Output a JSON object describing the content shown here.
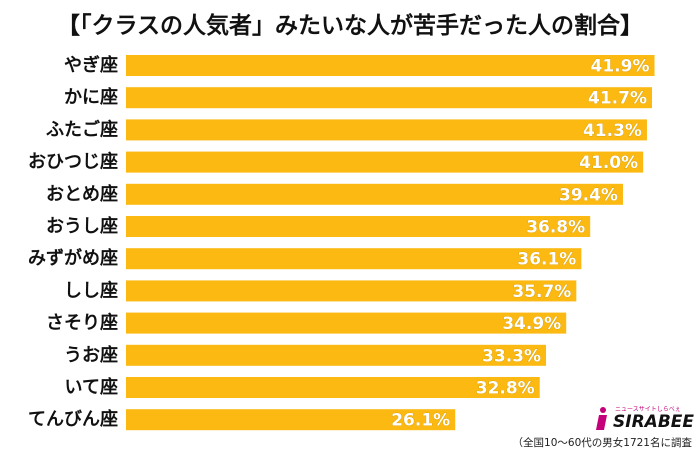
{
  "chart_data": {
    "type": "bar",
    "orientation": "horizontal",
    "title": "【「クラスの人気者」みたいな人が苦手だった人の割合】",
    "categories": [
      "やぎ座",
      "かに座",
      "ふたご座",
      "おひつじ座",
      "おとめ座",
      "おうし座",
      "みずがめ座",
      "しし座",
      "さそり座",
      "うお座",
      "いて座",
      "てんびん座"
    ],
    "values": [
      41.9,
      41.7,
      41.3,
      41.0,
      39.4,
      36.8,
      36.1,
      35.7,
      34.9,
      33.3,
      32.8,
      26.1
    ],
    "value_labels": [
      "41.9%",
      "41.7%",
      "41.3%",
      "41.0%",
      "39.4%",
      "36.8%",
      "36.1%",
      "35.7%",
      "34.9%",
      "33.3%",
      "32.8%",
      "26.1%"
    ],
    "unit": "%",
    "xlim": [
      0,
      44
    ],
    "grid": false,
    "legend": "none",
    "bar_color": "#FBB911"
  },
  "logo": {
    "brand": "SIRABEE",
    "tagline": "ニュースサイトしらべぇ",
    "accent_color": "#C4007A"
  },
  "footnote": "（全国10～60代の男女1721名に調査"
}
